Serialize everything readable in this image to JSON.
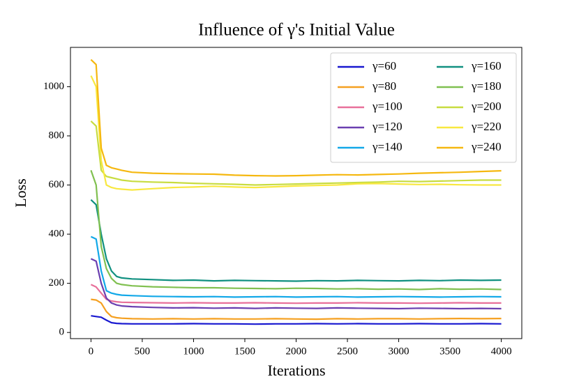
{
  "chart_data": {
    "type": "line",
    "title": "Influence of γ's Initial Value",
    "x_label": "Iterations",
    "y_label": "Loss",
    "x": [
      0,
      50,
      100,
      150,
      200,
      250,
      300,
      400,
      600,
      800,
      1000,
      1200,
      1400,
      1600,
      1800,
      2000,
      2200,
      2400,
      2600,
      2800,
      3000,
      3200,
      3400,
      3600,
      3800,
      4000
    ],
    "xlim": [
      -200,
      4200
    ],
    "xticks": [
      0,
      500,
      1000,
      1500,
      2000,
      2500,
      3000,
      3500,
      4000
    ],
    "ylim": [
      -25,
      1160
    ],
    "yticks": [
      0,
      200,
      400,
      600,
      800,
      1000
    ],
    "grid": false,
    "legend": "upper right",
    "series": [
      {
        "name": "γ=60",
        "color": "#1818d0",
        "values": [
          68,
          65,
          62,
          50,
          40,
          37,
          36,
          35,
          35,
          35,
          36,
          35,
          35,
          34,
          35,
          35,
          36,
          35,
          36,
          35,
          35,
          36,
          35,
          35,
          36,
          35
        ]
      },
      {
        "name": "γ=80",
        "color": "#f5a020",
        "values": [
          135,
          132,
          120,
          85,
          65,
          60,
          58,
          56,
          55,
          56,
          55,
          56,
          55,
          55,
          56,
          55,
          54,
          56,
          55,
          56,
          56,
          55,
          56,
          57,
          56,
          57
        ]
      },
      {
        "name": "γ=100",
        "color": "#e8709a",
        "values": [
          195,
          185,
          160,
          135,
          128,
          125,
          123,
          122,
          121,
          120,
          121,
          120,
          120,
          121,
          120,
          119,
          120,
          120,
          121,
          120,
          120,
          119,
          120,
          121,
          120,
          120
        ]
      },
      {
        "name": "γ=120",
        "color": "#6a3fb0",
        "values": [
          300,
          290,
          200,
          140,
          120,
          112,
          108,
          105,
          102,
          100,
          101,
          99,
          100,
          98,
          100,
          99,
          98,
          100,
          99,
          98,
          97,
          99,
          98,
          97,
          98,
          97
        ]
      },
      {
        "name": "γ=140",
        "color": "#12a8e8",
        "values": [
          390,
          380,
          250,
          170,
          160,
          155,
          152,
          150,
          147,
          146,
          145,
          146,
          144,
          145,
          146,
          144,
          145,
          146,
          144,
          145,
          146,
          145,
          144,
          145,
          146,
          145
        ]
      },
      {
        "name": "γ=160",
        "color": "#109080",
        "values": [
          540,
          520,
          400,
          300,
          250,
          228,
          222,
          218,
          215,
          212,
          213,
          210,
          212,
          211,
          210,
          209,
          211,
          210,
          212,
          211,
          210,
          212,
          211,
          213,
          212,
          213
        ]
      },
      {
        "name": "γ=180",
        "color": "#80c050",
        "values": [
          660,
          600,
          350,
          260,
          220,
          200,
          195,
          190,
          186,
          184,
          182,
          182,
          180,
          179,
          178,
          180,
          179,
          177,
          178,
          176,
          177,
          175,
          178,
          176,
          177,
          175
        ]
      },
      {
        "name": "γ=200",
        "color": "#c8dc40",
        "values": [
          860,
          840,
          660,
          635,
          630,
          625,
          620,
          615,
          612,
          610,
          607,
          605,
          603,
          600,
          602,
          604,
          606,
          608,
          610,
          612,
          615,
          614,
          616,
          618,
          620,
          620
        ]
      },
      {
        "name": "γ=220",
        "color": "#f8e840",
        "values": [
          1045,
          1000,
          700,
          600,
          590,
          585,
          583,
          580,
          585,
          590,
          592,
          595,
          592,
          590,
          593,
          596,
          598,
          600,
          605,
          606,
          604,
          602,
          603,
          601,
          600,
          600
        ]
      },
      {
        "name": "γ=240",
        "color": "#f5b810",
        "values": [
          1110,
          1090,
          750,
          680,
          670,
          665,
          660,
          652,
          648,
          646,
          645,
          644,
          640,
          638,
          637,
          638,
          640,
          642,
          641,
          643,
          645,
          648,
          650,
          652,
          655,
          658
        ]
      }
    ]
  }
}
